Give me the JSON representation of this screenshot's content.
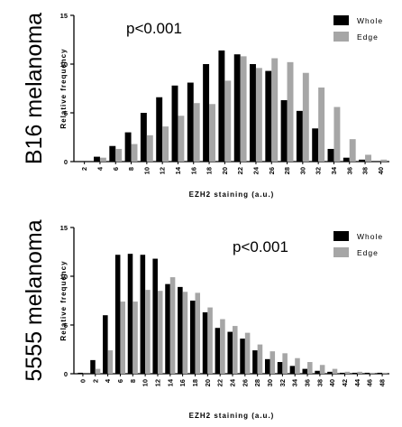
{
  "colors": {
    "whole": "#000000",
    "edge": "#a6a6a6",
    "axis": "#000000"
  },
  "chart_data": [
    {
      "type": "bar",
      "row_label": "B16 melanoma",
      "annotation": "p<0.001",
      "xlabel": "EZH2 staining (a.u.)",
      "ylabel": "Relative frequency",
      "ylim": [
        0,
        15
      ],
      "yticks": [
        "0",
        "5",
        "10",
        "15"
      ],
      "categories": [
        "2",
        "4",
        "6",
        "8",
        "10",
        "12",
        "14",
        "16",
        "18",
        "20",
        "22",
        "24",
        "26",
        "28",
        "30",
        "32",
        "34",
        "36",
        "38",
        "40"
      ],
      "series": [
        {
          "name": "Whole",
          "values": [
            0.0,
            0.5,
            1.6,
            3.0,
            5.0,
            6.6,
            7.8,
            8.1,
            10.0,
            11.4,
            11.0,
            10.0,
            9.3,
            6.3,
            5.2,
            3.4,
            1.3,
            0.4,
            0.2,
            0.0
          ]
        },
        {
          "name": "Edge",
          "values": [
            0.0,
            0.4,
            1.3,
            1.8,
            2.7,
            3.6,
            4.7,
            6.0,
            5.9,
            8.3,
            10.8,
            9.6,
            10.6,
            10.2,
            9.1,
            7.6,
            5.6,
            2.3,
            0.7,
            0.2
          ]
        }
      ]
    },
    {
      "type": "bar",
      "row_label": "5555 melanoma",
      "annotation": "p<0.001",
      "xlabel": "EZH2 staining (a.u.)",
      "ylabel": "Relative frequency",
      "ylim": [
        0,
        15
      ],
      "yticks": [
        "0",
        "5",
        "10",
        "15"
      ],
      "categories": [
        "0",
        "2",
        "4",
        "6",
        "8",
        "10",
        "12",
        "14",
        "16",
        "18",
        "20",
        "22",
        "24",
        "26",
        "28",
        "30",
        "32",
        "34",
        "36",
        "38",
        "40",
        "42",
        "44",
        "46",
        "48"
      ],
      "series": [
        {
          "name": "Whole",
          "values": [
            0.1,
            1.4,
            6.0,
            12.2,
            12.3,
            12.2,
            11.8,
            9.2,
            8.9,
            7.5,
            6.3,
            4.7,
            4.3,
            3.6,
            2.4,
            1.5,
            1.2,
            0.8,
            0.5,
            0.3,
            0.2,
            0.1,
            0.1,
            0.1,
            0.1
          ]
        },
        {
          "name": "Edge",
          "values": [
            0.0,
            0.5,
            2.4,
            7.4,
            7.4,
            8.6,
            8.5,
            9.9,
            8.4,
            8.3,
            6.8,
            5.6,
            4.9,
            4.2,
            3.0,
            2.3,
            2.1,
            1.6,
            1.2,
            0.9,
            0.5,
            0.2,
            0.2,
            0.1,
            0.1
          ]
        }
      ]
    }
  ]
}
